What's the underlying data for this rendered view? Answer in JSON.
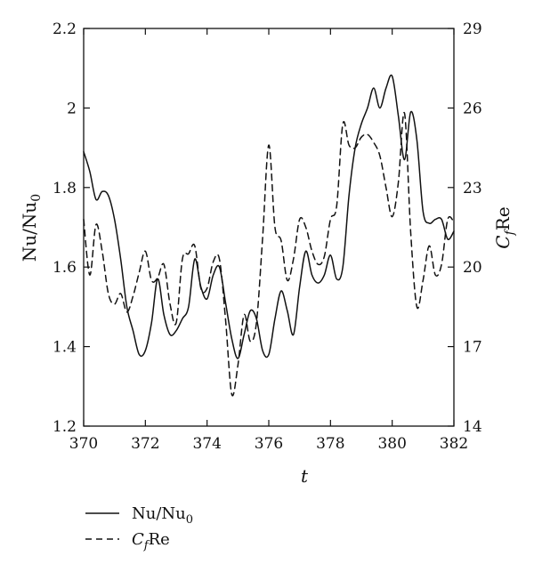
{
  "chart_data": {
    "type": "line",
    "title": "",
    "xlabel": "t",
    "ylabel_left": "Nu/Nu",
    "ylabel_left_sub": "0",
    "ylabel_right": "C",
    "ylabel_right_sub": "f",
    "ylabel_right_suffix": "Re",
    "xlim": [
      370,
      382
    ],
    "ylim_left": [
      1.2,
      2.2
    ],
    "ylim_right": [
      14,
      29
    ],
    "xticks": [
      "370",
      "372",
      "374",
      "376",
      "378",
      "380",
      "382"
    ],
    "yticks_left": [
      "1.2",
      "1.4",
      "1.6",
      "1.8",
      "2",
      "2.2"
    ],
    "yticks_right": [
      "14",
      "17",
      "20",
      "23",
      "26",
      "29"
    ],
    "grid": false,
    "legend_position": "bottom-left",
    "series": [
      {
        "name": "Nu/Nu",
        "name_sub": "0",
        "axis": "left",
        "style": "solid",
        "color": "#111111",
        "x": [
          370.0,
          370.2,
          370.4,
          370.6,
          370.8,
          371.0,
          371.2,
          371.4,
          371.6,
          371.8,
          372.0,
          372.2,
          372.4,
          372.6,
          372.8,
          373.0,
          373.2,
          373.4,
          373.6,
          373.8,
          374.0,
          374.2,
          374.4,
          374.6,
          374.8,
          375.0,
          375.2,
          375.4,
          375.6,
          375.8,
          376.0,
          376.2,
          376.4,
          376.6,
          376.8,
          377.0,
          377.2,
          377.4,
          377.6,
          377.8,
          378.0,
          378.2,
          378.4,
          378.6,
          378.8,
          379.0,
          379.2,
          379.4,
          379.6,
          379.8,
          380.0,
          380.2,
          380.4,
          380.6,
          380.8,
          381.0,
          381.2,
          381.4,
          381.6,
          381.8,
          382.0
        ],
        "values": [
          1.89,
          1.84,
          1.77,
          1.79,
          1.78,
          1.72,
          1.62,
          1.5,
          1.44,
          1.38,
          1.39,
          1.46,
          1.57,
          1.48,
          1.43,
          1.44,
          1.47,
          1.5,
          1.62,
          1.55,
          1.52,
          1.58,
          1.6,
          1.51,
          1.42,
          1.37,
          1.43,
          1.49,
          1.47,
          1.39,
          1.38,
          1.47,
          1.54,
          1.49,
          1.43,
          1.55,
          1.64,
          1.58,
          1.56,
          1.58,
          1.63,
          1.57,
          1.6,
          1.78,
          1.9,
          1.96,
          2.0,
          2.05,
          2.0,
          2.05,
          2.08,
          1.98,
          1.87,
          1.99,
          1.92,
          1.74,
          1.71,
          1.72,
          1.72,
          1.67,
          1.69
        ]
      },
      {
        "name": "C",
        "name_sub": "f",
        "name_suffix": "Re",
        "axis": "right",
        "style": "dashed",
        "color": "#111111",
        "x": [
          370.0,
          370.2,
          370.4,
          370.6,
          370.8,
          371.0,
          371.2,
          371.4,
          371.6,
          371.8,
          372.0,
          372.2,
          372.4,
          372.6,
          372.8,
          373.0,
          373.2,
          373.4,
          373.6,
          373.8,
          374.0,
          374.2,
          374.4,
          374.6,
          374.8,
          375.0,
          375.2,
          375.4,
          375.6,
          375.8,
          376.0,
          376.2,
          376.4,
          376.6,
          376.8,
          377.0,
          377.2,
          377.4,
          377.6,
          377.8,
          378.0,
          378.2,
          378.4,
          378.6,
          378.8,
          379.0,
          379.2,
          379.4,
          379.6,
          379.8,
          380.0,
          380.2,
          380.4,
          380.6,
          380.8,
          381.0,
          381.2,
          381.4,
          381.6,
          381.8,
          382.0
        ],
        "values": [
          21.8,
          19.7,
          21.6,
          20.6,
          19.0,
          18.6,
          19.0,
          18.3,
          18.9,
          19.8,
          20.6,
          19.5,
          19.6,
          20.1,
          18.6,
          17.9,
          20.3,
          20.5,
          20.8,
          19.2,
          19.2,
          20.2,
          20.3,
          18.0,
          15.2,
          16.3,
          18.2,
          17.2,
          17.9,
          21.1,
          24.6,
          21.5,
          21.0,
          19.5,
          20.3,
          21.8,
          21.5,
          20.6,
          20.1,
          20.4,
          21.8,
          22.3,
          25.4,
          24.6,
          24.5,
          24.9,
          25.0,
          24.7,
          24.2,
          23.0,
          21.9,
          23.2,
          25.8,
          21.3,
          18.5,
          19.5,
          20.8,
          19.7,
          20.1,
          21.8,
          21.7
        ]
      }
    ]
  }
}
